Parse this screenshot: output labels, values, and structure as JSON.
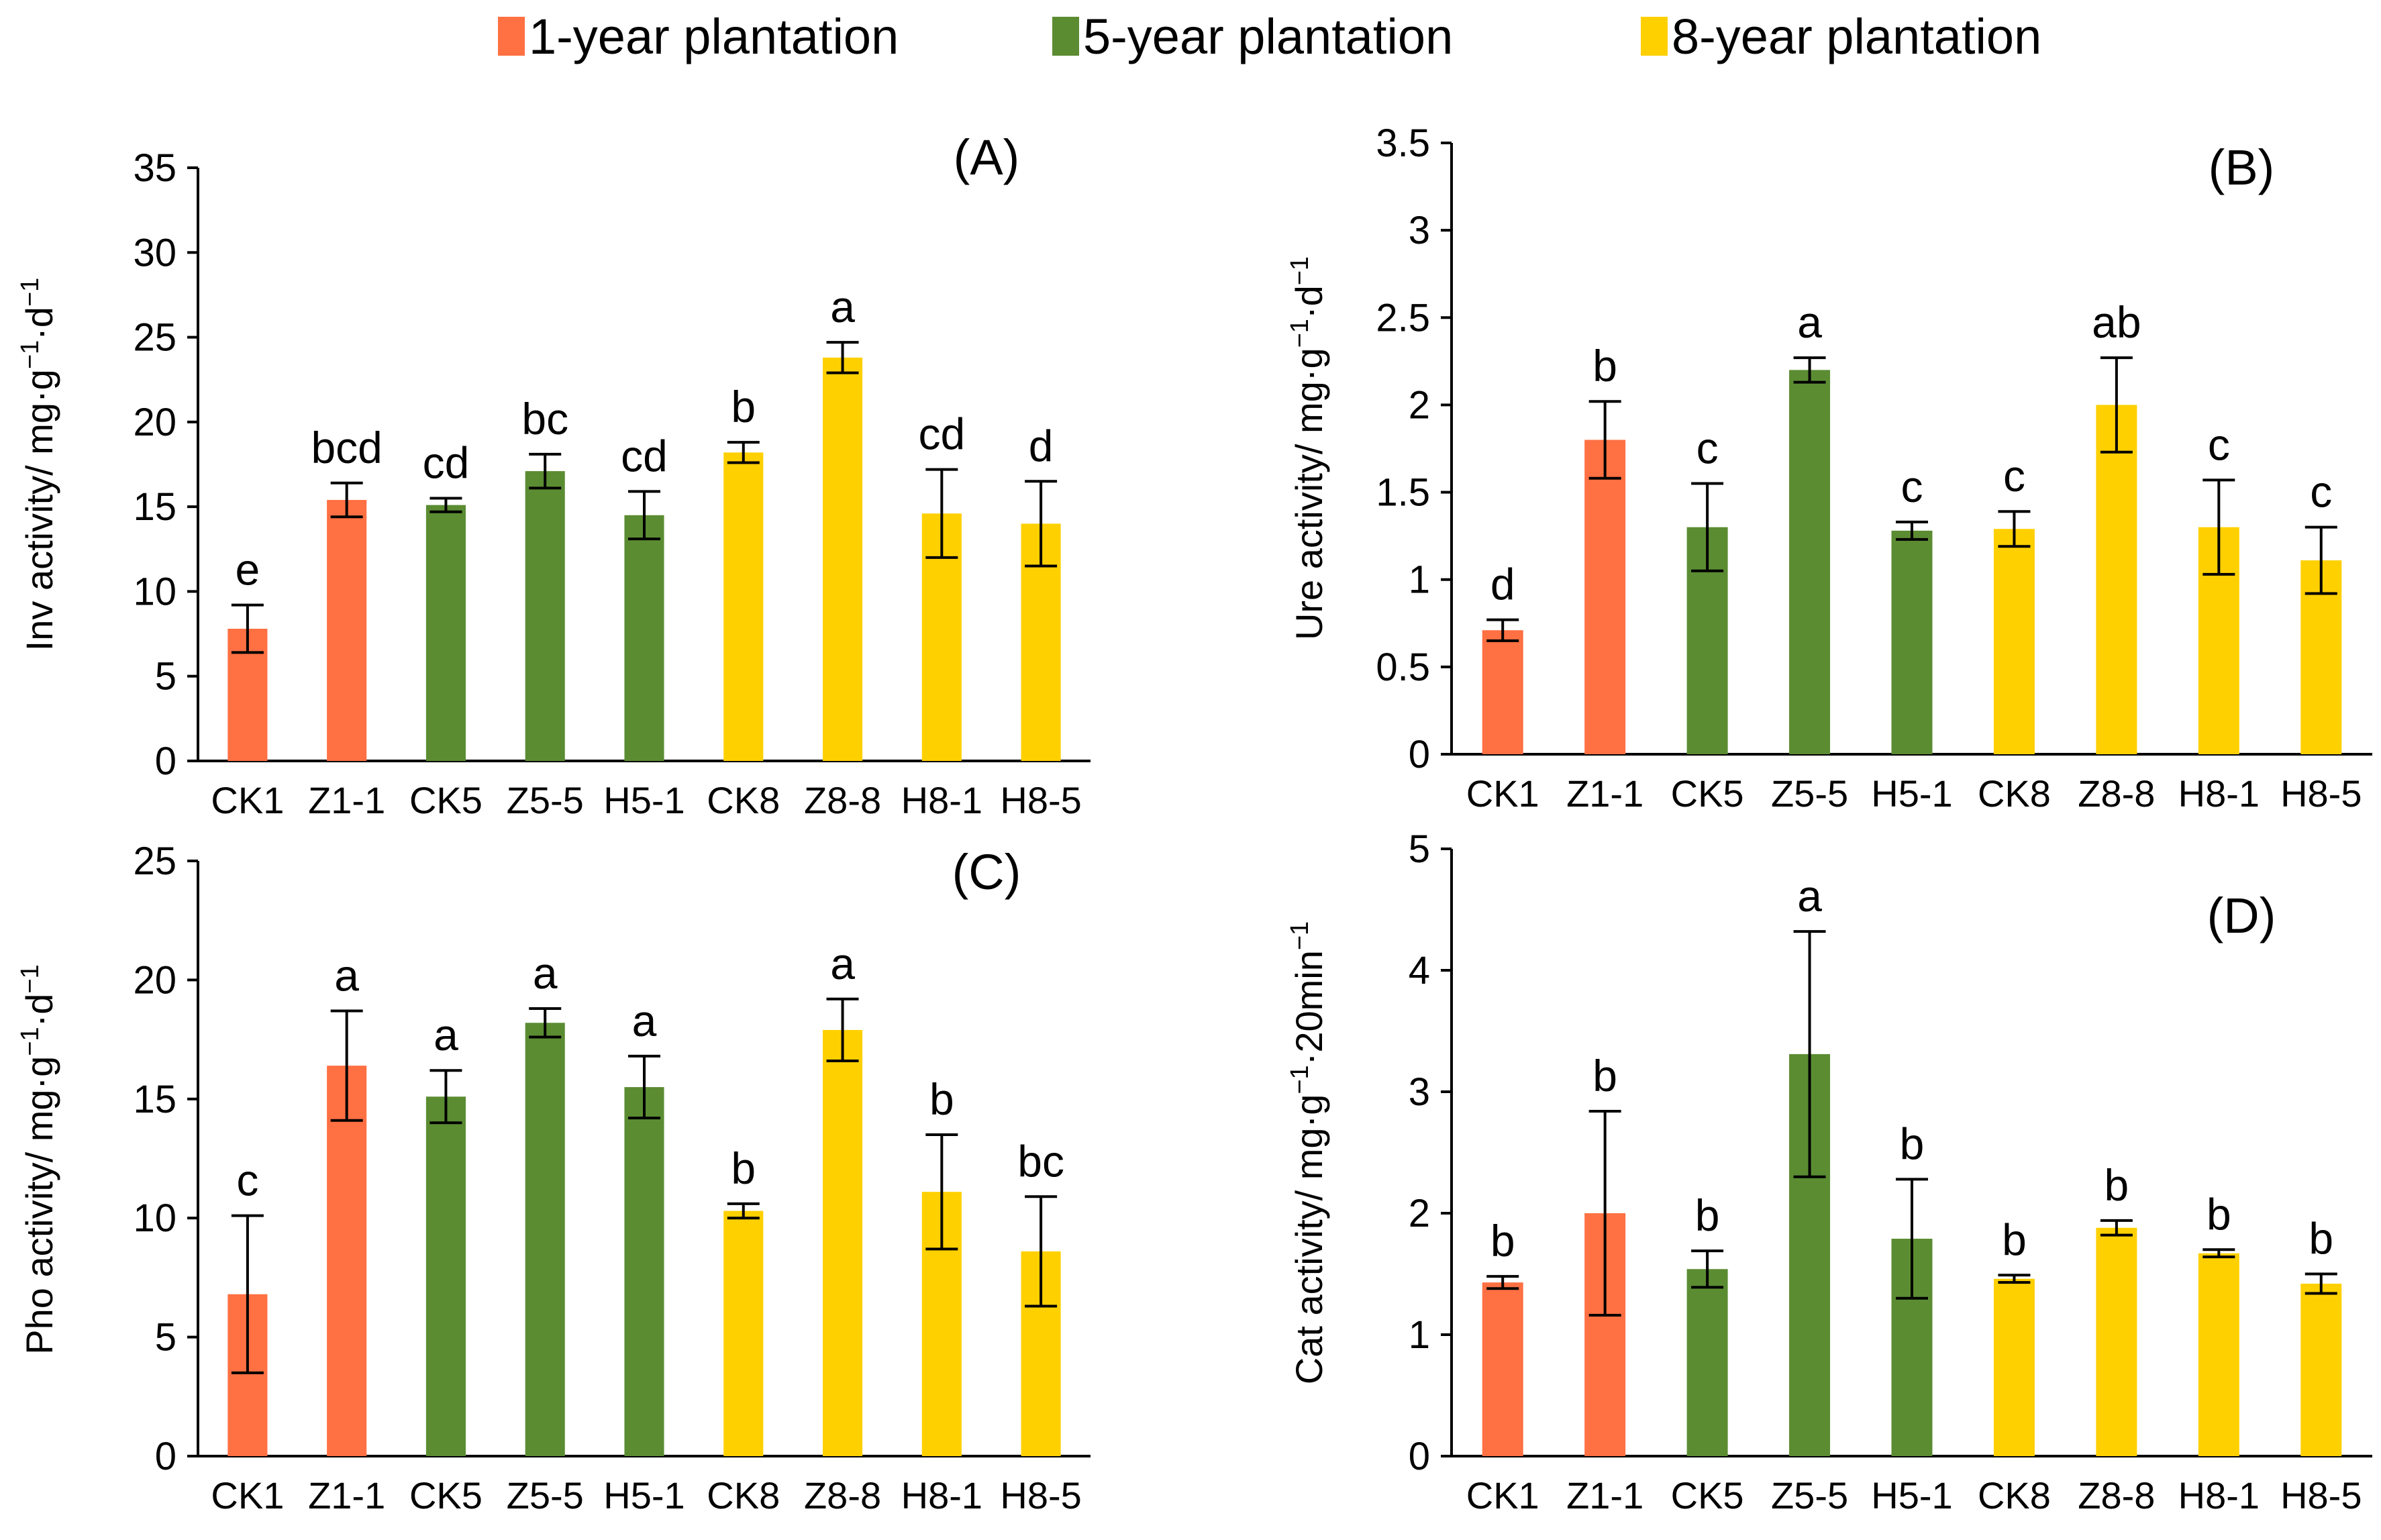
{
  "legend": [
    {
      "label": "1-year plantation",
      "color": "#FF7043"
    },
    {
      "label": "5-year plantation",
      "color": "#5B8C32"
    },
    {
      "label": "8-year plantation",
      "color": "#FFD000"
    }
  ],
  "categories": [
    "CK1",
    "Z1-1",
    "CK5",
    "Z5-5",
    "H5-1",
    "CK8",
    "Z8-8",
    "H8-1",
    "H8-5"
  ],
  "category_groups": [
    0,
    0,
    1,
    1,
    1,
    2,
    2,
    2,
    2
  ],
  "chart_data": [
    {
      "type": "bar",
      "panel": "(A)",
      "ylabel_main": "Inv activity/ mg·g",
      "ylabel_sup1": "−1",
      "ylabel_mid": "·d",
      "ylabel_sup2": "−1",
      "ylim": [
        0,
        35
      ],
      "yticks": [
        0,
        5,
        10,
        15,
        20,
        25,
        30,
        35
      ],
      "ytick_labels": [
        "0",
        "5",
        "10",
        "15",
        "20",
        "25",
        "30",
        "35"
      ],
      "values": [
        7.8,
        15.4,
        15.1,
        17.1,
        14.5,
        18.2,
        23.8,
        14.6,
        14.0
      ],
      "errors": [
        1.4,
        1.0,
        0.4,
        1.0,
        1.4,
        0.6,
        0.9,
        2.6,
        2.5
      ],
      "letters": [
        "e",
        "bcd",
        "cd",
        "bc",
        "cd",
        "b",
        "a",
        "cd",
        "d"
      ]
    },
    {
      "type": "bar",
      "panel": "(B)",
      "ylabel_main": "Ure activity/ mg·g",
      "ylabel_sup1": "−1",
      "ylabel_mid": "·d",
      "ylabel_sup2": "−1",
      "ylim": [
        0,
        3.5
      ],
      "yticks": [
        0,
        0.5,
        1,
        1.5,
        2,
        2.5,
        3,
        3.5
      ],
      "ytick_labels": [
        "0",
        "0.5",
        "1",
        "1.5",
        "2",
        "2.5",
        "3",
        "3.5"
      ],
      "values": [
        0.71,
        1.8,
        1.3,
        2.2,
        1.28,
        1.29,
        2.0,
        1.3,
        1.11
      ],
      "errors": [
        0.06,
        0.22,
        0.25,
        0.07,
        0.05,
        0.1,
        0.27,
        0.27,
        0.19
      ],
      "letters": [
        "d",
        "b",
        "c",
        "a",
        "c",
        "c",
        "ab",
        "c",
        "c"
      ]
    },
    {
      "type": "bar",
      "panel": "(C)",
      "ylabel_main": "Pho activity/ mg·g",
      "ylabel_sup1": "−1",
      "ylabel_mid": "·d",
      "ylabel_sup2": "−1",
      "ylim": [
        0,
        25
      ],
      "yticks": [
        0,
        5,
        10,
        15,
        20,
        25
      ],
      "ytick_labels": [
        "0",
        "5",
        "10",
        "15",
        "20",
        "25"
      ],
      "values": [
        6.8,
        16.4,
        15.1,
        18.2,
        15.5,
        10.3,
        17.9,
        11.1,
        8.6
      ],
      "errors": [
        3.3,
        2.3,
        1.1,
        0.6,
        1.3,
        0.3,
        1.3,
        2.4,
        2.3
      ],
      "letters": [
        "c",
        "a",
        "a",
        "a",
        "a",
        "b",
        "a",
        "b",
        "bc"
      ]
    },
    {
      "type": "bar",
      "panel": "(D)",
      "ylabel_main": "Cat activity/ mg·g",
      "ylabel_sup1": "−1",
      "ylabel_mid": "·20min",
      "ylabel_sup2": "−1",
      "ylim": [
        0,
        5
      ],
      "yticks": [
        0,
        1,
        2,
        3,
        4,
        5
      ],
      "ytick_labels": [
        "0",
        "1",
        "2",
        "3",
        "4",
        "5"
      ],
      "values": [
        1.43,
        2.0,
        1.54,
        3.31,
        1.79,
        1.46,
        1.88,
        1.67,
        1.42
      ],
      "errors": [
        0.05,
        0.84,
        0.15,
        1.01,
        0.49,
        0.03,
        0.06,
        0.03,
        0.08
      ],
      "letters": [
        "b",
        "b",
        "b",
        "a",
        "b",
        "b",
        "b",
        "b",
        "b"
      ]
    }
  ]
}
